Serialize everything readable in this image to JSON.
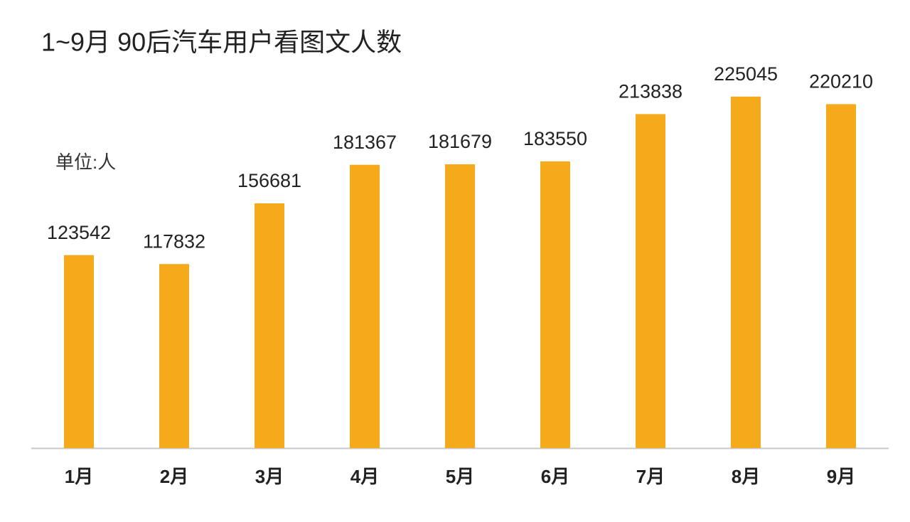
{
  "chart_data": {
    "type": "bar",
    "title": "1~9月 90后汽车用户看图文人数",
    "unit_label": "单位:人",
    "categories": [
      "1月",
      "2月",
      "3月",
      "4月",
      "5月",
      "6月",
      "7月",
      "8月",
      "9月"
    ],
    "values": [
      123542,
      117832,
      156681,
      181367,
      181679,
      183550,
      213838,
      225045,
      220210
    ],
    "color": "#f5aa1c",
    "ylim": [
      0,
      250000
    ],
    "grid": false
  }
}
